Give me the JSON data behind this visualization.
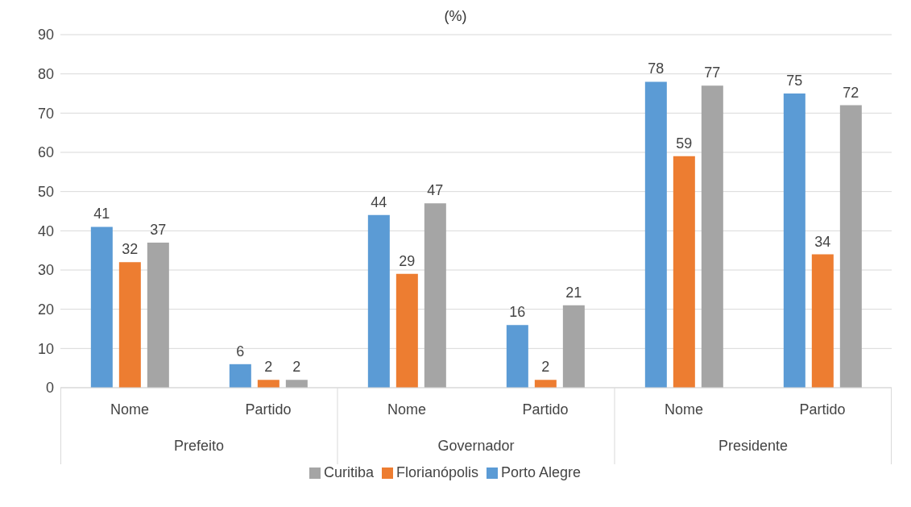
{
  "chart_data": {
    "type": "bar",
    "title": "(%)",
    "categories": [
      "Nome",
      "Partido",
      "Nome",
      "Partido",
      "Nome",
      "Partido"
    ],
    "annotations": [
      "Prefeito",
      "Governador",
      "Presidente"
    ],
    "series": [
      {
        "name": "Porto Alegre",
        "color": "#5b9bd5",
        "values": [
          41,
          6,
          44,
          16,
          78,
          75
        ]
      },
      {
        "name": "Florianópolis",
        "color": "#ed7d31",
        "values": [
          32,
          2,
          29,
          2,
          59,
          34
        ]
      },
      {
        "name": "Curitiba",
        "color": "#a5a5a5",
        "values": [
          37,
          2,
          47,
          21,
          77,
          72
        ]
      }
    ],
    "ylim": [
      0,
      90
    ],
    "yticks": [
      0,
      10,
      20,
      30,
      40,
      50,
      60,
      70,
      80,
      90
    ],
    "grid": "y",
    "legend": "bottom",
    "data_labels": true
  }
}
